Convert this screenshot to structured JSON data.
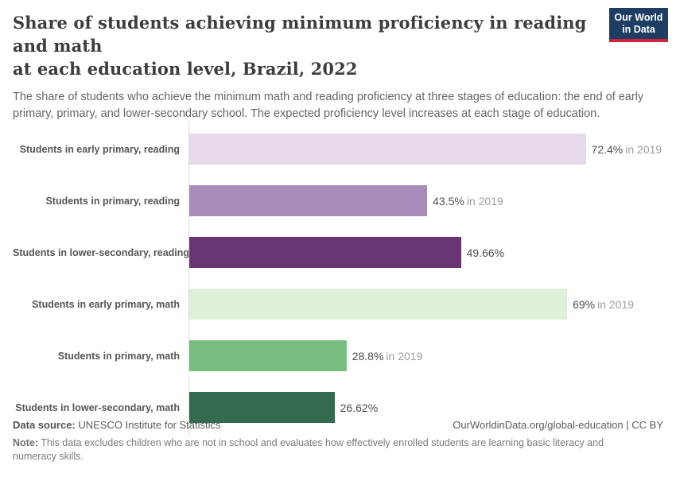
{
  "header": {
    "title_line1": "Share of students achieving minimum proficiency in reading and math",
    "title_line2": "at each education level, Brazil, 2022",
    "logo_line1": "Our World",
    "logo_line2": "in Data",
    "subtitle": "The share of students who achieve the minimum math and reading proficiency at three stages of education: the end of early primary, primary, and lower-secondary school. The expected proficiency level increases at each stage of education."
  },
  "chart_data": {
    "type": "bar",
    "orientation": "horizontal",
    "title": "Share of students achieving minimum proficiency in reading and math at each education level, Brazil, 2022",
    "categories": [
      "Students in early primary, reading",
      "Students in primary, reading",
      "Students in lower-secondary, reading",
      "Students in early primary, math",
      "Students in primary, math",
      "Students in lower-secondary, math"
    ],
    "values": [
      72.4,
      43.5,
      49.66,
      69,
      28.8,
      26.62
    ],
    "value_labels": [
      "72.4%",
      "43.5%",
      "49.66%",
      "69%",
      "28.8%",
      "26.62%"
    ],
    "year_notes": [
      "in 2019",
      "in 2019",
      "",
      "in 2019",
      "in 2019",
      ""
    ],
    "bar_colors": [
      "#e7dbeb",
      "#a88abb",
      "#693572",
      "#dff0db",
      "#79be81",
      "#346a4d"
    ],
    "xlabel": "",
    "ylabel": "",
    "xlim": [
      0,
      85.2
    ],
    "grid": false,
    "legend": "none"
  },
  "footer": {
    "datasource_label": "Data source:",
    "datasource_value": " UNESCO Institute for Statistics",
    "attribution": "OurWorldinData.org/global-education | CC BY",
    "note_label": "Note:",
    "note_text": " This data excludes children who are not in school and evaluates how effectively enrolled students are learning basic literacy and numeracy skills."
  }
}
